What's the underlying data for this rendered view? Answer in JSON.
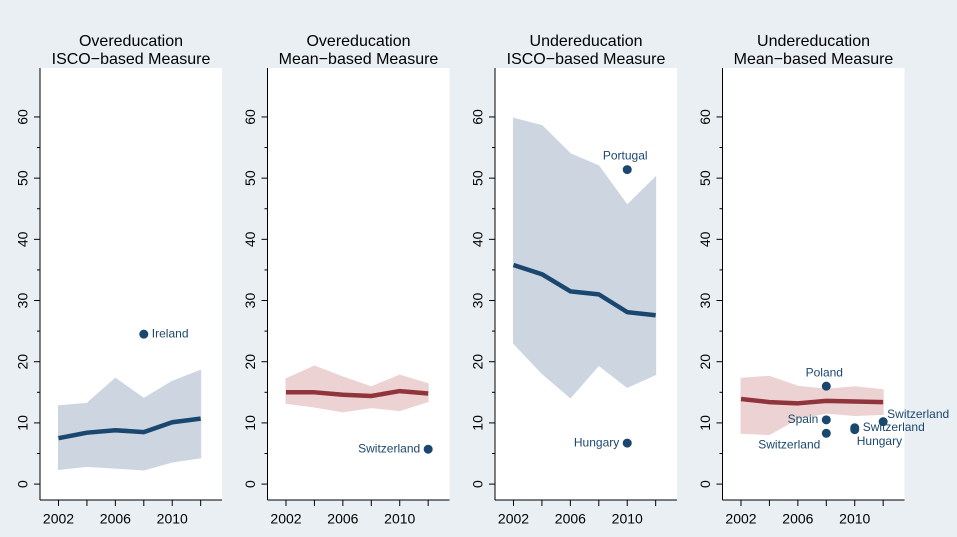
{
  "chart_data": [
    {
      "type": "line",
      "title": "Overeducation",
      "subtitle": "ISCO−based Measure",
      "x": [
        2002,
        2004,
        2006,
        2008,
        2010,
        2012
      ],
      "line": {
        "color": "#1a476f",
        "values": [
          7.5,
          8.4,
          8.8,
          8.5,
          10.1,
          10.7
        ]
      },
      "band": {
        "color": "#cdd6e0",
        "lower": [
          2.4,
          2.9,
          2.6,
          2.3,
          3.6,
          4.3
        ],
        "upper": [
          12.8,
          13.2,
          17.3,
          14.0,
          16.8,
          18.6
        ]
      },
      "points": [
        {
          "label": "Ireland",
          "x": 2008,
          "y": 24.5,
          "label_position": "right"
        }
      ],
      "xlim": [
        2000.7,
        2013.5
      ],
      "xticks": [
        2002,
        2006,
        2010
      ],
      "xminorticks": [
        2004,
        2008,
        2012
      ],
      "ylim": [
        -2.6,
        68
      ],
      "yticks": [
        0,
        10,
        20,
        30,
        40,
        50,
        60
      ],
      "yminorticks": [
        5,
        15,
        25,
        35,
        45,
        55
      ]
    },
    {
      "type": "line",
      "title": "Overeducation",
      "subtitle": "Mean−based Measure",
      "x": [
        2002,
        2004,
        2006,
        2008,
        2010,
        2012
      ],
      "line": {
        "color": "#90353b",
        "values": [
          15.0,
          15.0,
          14.6,
          14.4,
          15.2,
          14.8
        ]
      },
      "band": {
        "color": "#ecd2d2",
        "lower": [
          13.2,
          12.6,
          11.8,
          12.5,
          12.0,
          13.5
        ],
        "upper": [
          17.2,
          19.3,
          17.5,
          15.9,
          17.8,
          16.4
        ]
      },
      "points": [
        {
          "label": "Switzerland",
          "x": 2012,
          "y": 5.7,
          "label_position": "left"
        }
      ],
      "xlim": [
        2000.7,
        2013.5
      ],
      "xticks": [
        2002,
        2006,
        2010
      ],
      "xminorticks": [
        2004,
        2008,
        2012
      ],
      "ylim": [
        -2.6,
        68
      ],
      "yticks": [
        0,
        10,
        20,
        30,
        40,
        50,
        60
      ],
      "yminorticks": [
        5,
        15,
        25,
        35,
        45,
        55
      ]
    },
    {
      "type": "line",
      "title": "Undereducation",
      "subtitle": "ISCO−based Measure",
      "x": [
        2002,
        2004,
        2006,
        2008,
        2010,
        2012
      ],
      "line": {
        "color": "#1a476f",
        "values": [
          35.8,
          34.3,
          31.5,
          31.0,
          28.1,
          27.6
        ]
      },
      "band": {
        "color": "#cdd6e0",
        "lower": [
          23.0,
          18.1,
          14.1,
          19.4,
          15.8,
          17.9
        ],
        "upper": [
          59.8,
          58.6,
          54.0,
          52.0,
          45.6,
          50.2
        ]
      },
      "points": [
        {
          "label": "Portugal",
          "x": 2010,
          "y": 51.4,
          "label_position": "top"
        },
        {
          "label": "Hungary",
          "x": 2010,
          "y": 6.7,
          "label_position": "left"
        }
      ],
      "xlim": [
        2000.7,
        2013.5
      ],
      "xticks": [
        2002,
        2006,
        2010
      ],
      "xminorticks": [
        2004,
        2008,
        2012
      ],
      "ylim": [
        -2.6,
        68
      ],
      "yticks": [
        0,
        10,
        20,
        30,
        40,
        50,
        60
      ],
      "yminorticks": [
        5,
        15,
        25,
        35,
        45,
        55
      ]
    },
    {
      "type": "line",
      "title": "Undereducation",
      "subtitle": "Mean−based Measure",
      "x": [
        2002,
        2004,
        2006,
        2008,
        2010,
        2012
      ],
      "line": {
        "color": "#90353b",
        "values": [
          13.9,
          13.4,
          13.2,
          13.6,
          13.5,
          13.4
        ]
      },
      "band": {
        "color": "#ecd2d2",
        "lower": [
          8.3,
          8.1,
          10.7,
          11.6,
          11.2,
          11.4
        ],
        "upper": [
          17.3,
          17.6,
          16.0,
          15.5,
          15.9,
          15.4
        ]
      },
      "points": [
        {
          "label": "Poland",
          "x": 2008,
          "y": 16.0,
          "label_position": "top"
        },
        {
          "label": "Spain",
          "x": 2008,
          "y": 10.5,
          "label_position": "left"
        },
        {
          "label": "Switzerland",
          "x": 2008,
          "y": 8.3,
          "label_position": "bottom-left"
        },
        {
          "label": "Switzerland",
          "x": 2010,
          "y": 9.2,
          "label_position": "right"
        },
        {
          "label": "Hungary",
          "x": 2010,
          "y": 8.9,
          "label_position": "bottom-right"
        },
        {
          "label": "Switzerland",
          "x": 2012,
          "y": 10.2,
          "label_position": "top-right"
        }
      ],
      "xlim": [
        2000.7,
        2013.5
      ],
      "xticks": [
        2002,
        2006,
        2010
      ],
      "xminorticks": [
        2004,
        2008,
        2012
      ],
      "ylim": [
        -2.6,
        68
      ],
      "yticks": [
        0,
        10,
        20,
        30,
        40,
        50,
        60
      ],
      "yminorticks": [
        5,
        15,
        25,
        35,
        45,
        55
      ]
    }
  ]
}
